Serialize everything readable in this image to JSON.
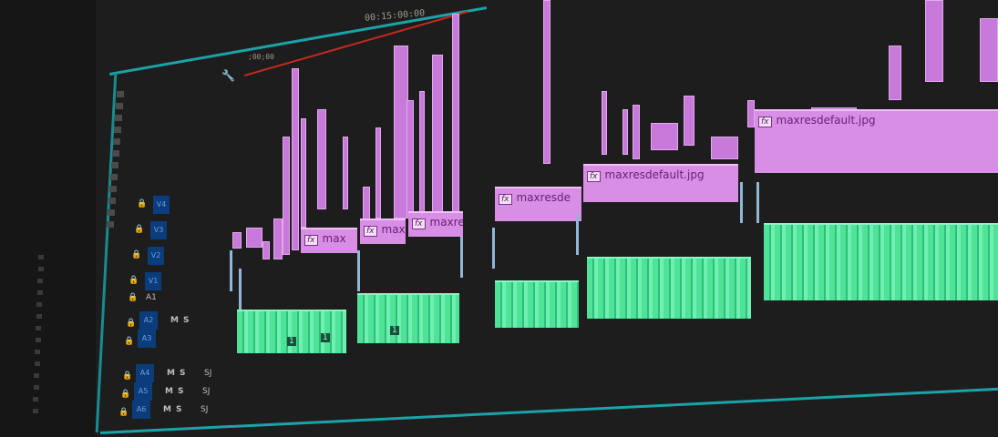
{
  "timeline": {
    "timecode": "00:15:00:00",
    "ruler_start": ";00;00",
    "playhead_color": "#c8281e",
    "accent_color": "#1aa3a8"
  },
  "tracks": {
    "video": [
      "V4",
      "V3",
      "V2",
      "V1"
    ],
    "audio": [
      "A1",
      "A2",
      "A3",
      "A4",
      "A5",
      "A6"
    ],
    "mute": "M",
    "solo": "S",
    "sync": "SJ"
  },
  "clips": [
    {
      "label": "max",
      "fx": "fx"
    },
    {
      "label": "max",
      "fx": "fx"
    },
    {
      "label": "maxre",
      "fx": "fx"
    },
    {
      "label": "maxresde",
      "fx": "fx"
    },
    {
      "label": "maxresdefault.jpg",
      "fx": "fx"
    },
    {
      "label": "maxresdefault.jpg",
      "fx": "fx"
    }
  ],
  "audio_markers": [
    "1",
    "1",
    "1"
  ],
  "colors": {
    "video_clip": "#d98ee6",
    "audio_clip": "#4fe39a",
    "track_button": "#0b3c7c"
  }
}
